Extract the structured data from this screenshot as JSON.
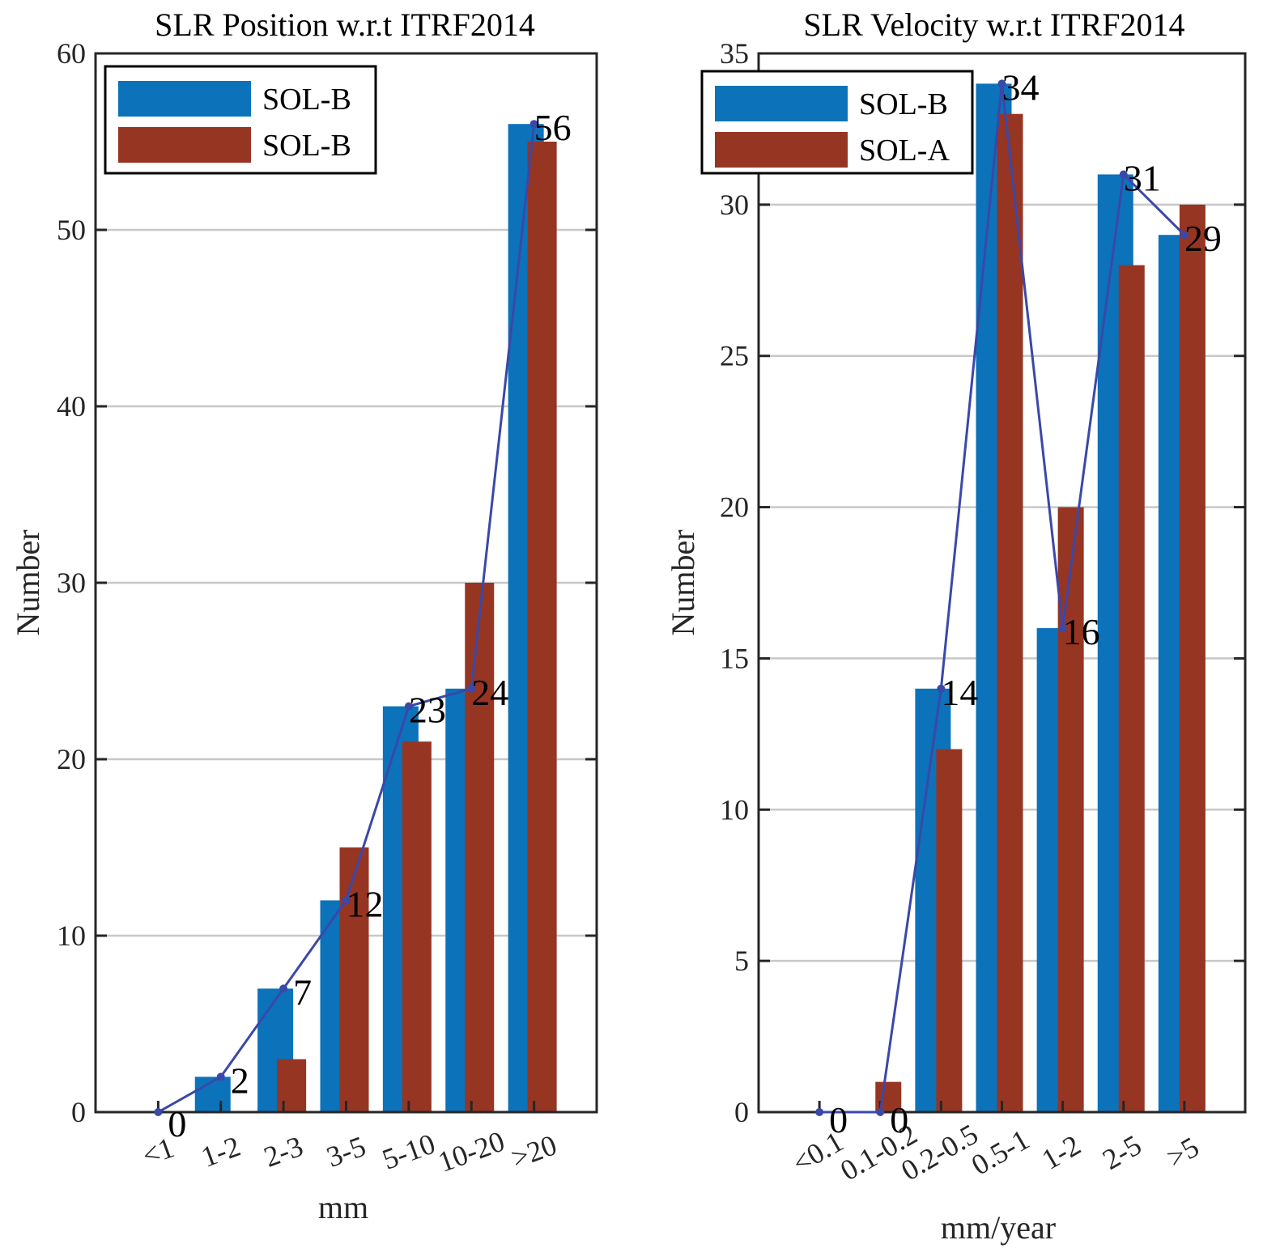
{
  "colors": {
    "series_a": "#0C72BA",
    "series_b": "#973523",
    "line": "#3A48A8",
    "grid": "#C8C8C8",
    "axis": "#262626"
  },
  "chart_data": [
    {
      "type": "bar",
      "title": "SLR Position w.r.t ITRF2014",
      "xlabel": "mm",
      "ylabel": "Number",
      "ylim": [
        0,
        60
      ],
      "yticks": [
        0,
        10,
        20,
        30,
        40,
        50,
        60
      ],
      "grid": true,
      "legend_position": "top-left",
      "categories": [
        "<1",
        "1-2",
        "2-3",
        "3-5",
        "5-10",
        "10-20",
        ">20"
      ],
      "series": [
        {
          "name": "SOL-B",
          "values": [
            0,
            2,
            7,
            12,
            23,
            24,
            56
          ]
        },
        {
          "name": "SOL-B",
          "values": [
            0,
            0,
            3,
            15,
            21,
            30,
            55
          ]
        }
      ],
      "line": {
        "values": [
          0,
          2,
          7,
          12,
          23,
          24,
          56
        ]
      },
      "data_labels": [
        "0",
        "2",
        "7",
        "12",
        "23",
        "24",
        "56"
      ]
    },
    {
      "type": "bar",
      "title": "SLR Velocity w.r.t ITRF2014",
      "xlabel": "mm/year",
      "ylabel": "Number",
      "ylim": [
        0,
        35
      ],
      "yticks": [
        0,
        5,
        10,
        15,
        20,
        25,
        30,
        35
      ],
      "grid": true,
      "legend_position": "top-left",
      "categories": [
        "<0.1",
        "0.1-0.2",
        "0.2-0.5",
        "0.5-1",
        "1-2",
        "2-5",
        ">5"
      ],
      "series": [
        {
          "name": "SOL-B",
          "values": [
            0,
            0,
            14,
            34,
            16,
            31,
            29
          ]
        },
        {
          "name": "SOL-A",
          "values": [
            0,
            1,
            12,
            33,
            20,
            28,
            30
          ]
        }
      ],
      "line": {
        "values": [
          0,
          0,
          14,
          34,
          16,
          31,
          29
        ]
      },
      "data_labels": [
        "0",
        "0",
        "14",
        "34",
        "16",
        "31",
        "29"
      ]
    }
  ]
}
